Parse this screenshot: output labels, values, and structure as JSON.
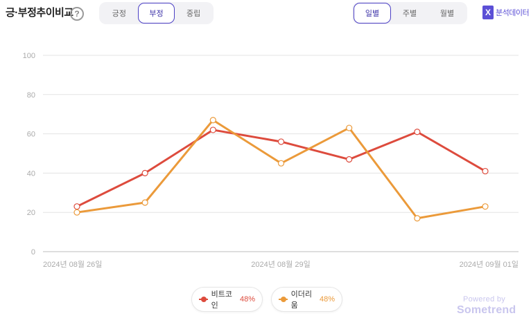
{
  "header": {
    "title": "긍·부정추이비교",
    "help": "?",
    "sentiment_tabs": [
      {
        "label": "긍정",
        "active": false
      },
      {
        "label": "부정",
        "active": true
      },
      {
        "label": "중립",
        "active": false
      }
    ],
    "period_tabs": [
      {
        "label": "일별",
        "active": true
      },
      {
        "label": "주별",
        "active": false
      },
      {
        "label": "월별",
        "active": false
      }
    ],
    "analysis_label": "분석데이터",
    "analysis_icon": "excel-icon"
  },
  "chart_data": {
    "type": "line",
    "y_ticks": [
      "100",
      "80",
      "60",
      "40",
      "20",
      "0"
    ],
    "ylim": [
      0,
      100
    ],
    "x_tick_labels": [
      "2024년 08월 26일",
      "2024년 08월 29일",
      "2024년 09월 01일"
    ],
    "x": [
      "2024-08-26",
      "2024-08-27",
      "2024-08-28",
      "2024-08-29",
      "2024-08-30",
      "2024-08-31",
      "2024-09-01"
    ],
    "series": [
      {
        "name": "비트코인",
        "color": "#dd4b3d",
        "values": [
          23,
          40,
          62,
          56,
          47,
          61,
          41
        ],
        "share": "48%"
      },
      {
        "name": "이더리움",
        "color": "#eb9a3a",
        "values": [
          20,
          25,
          67,
          45,
          63,
          17,
          23
        ],
        "share": "48%"
      }
    ],
    "grid": true
  },
  "footer": {
    "powered_by": "Powered by",
    "brand": "Sometrend"
  }
}
